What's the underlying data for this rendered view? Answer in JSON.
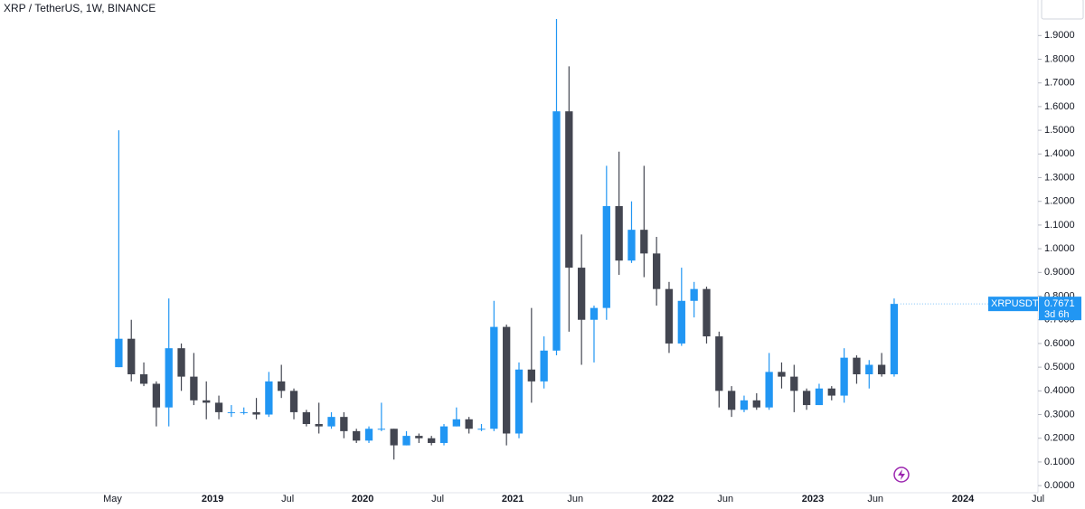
{
  "chart_data": {
    "type": "candlestick",
    "title": "XRP / TetherUS, 1W, BINANCE",
    "symbol": "XRPUSDT",
    "countdown": "3d 6h",
    "last_price": {
      "value": 0.7671,
      "label": "0.7671"
    },
    "up_color": "#2196f3",
    "down_color": "#434651",
    "x": [
      "2018-05",
      "2018-06",
      "2018-07",
      "2018-08",
      "2018-09",
      "2018-10",
      "2018-11",
      "2018-12",
      "2019-01",
      "2019-02",
      "2019-03",
      "2019-04",
      "2019-05",
      "2019-06",
      "2019-07",
      "2019-08",
      "2019-09",
      "2019-10",
      "2019-11",
      "2019-12",
      "2020-01",
      "2020-02",
      "2020-03",
      "2020-04",
      "2020-05",
      "2020-06",
      "2020-07",
      "2020-08",
      "2020-09",
      "2020-10",
      "2020-11",
      "2020-12",
      "2021-01",
      "2021-02",
      "2021-03",
      "2021-04",
      "2021-05",
      "2021-06",
      "2021-07",
      "2021-08",
      "2021-09",
      "2021-10",
      "2021-11",
      "2021-12",
      "2022-01",
      "2022-02",
      "2022-03",
      "2022-04",
      "2022-05",
      "2022-06",
      "2022-07",
      "2022-08",
      "2022-09",
      "2022-10",
      "2022-11",
      "2022-12",
      "2023-01",
      "2023-02",
      "2023-03",
      "2023-04",
      "2023-05",
      "2023-06",
      "2023-07"
    ],
    "open": [
      0.5,
      0.62,
      0.47,
      0.43,
      0.33,
      0.58,
      0.46,
      0.36,
      0.35,
      0.31,
      0.31,
      0.31,
      0.3,
      0.44,
      0.4,
      0.31,
      0.26,
      0.25,
      0.29,
      0.23,
      0.19,
      0.24,
      0.24,
      0.17,
      0.21,
      0.2,
      0.18,
      0.25,
      0.28,
      0.24,
      0.24,
      0.67,
      0.22,
      0.49,
      0.44,
      0.57,
      1.58,
      0.92,
      0.7,
      0.75,
      1.18,
      0.95,
      1.08,
      0.98,
      0.83,
      0.6,
      0.78,
      0.83,
      0.63,
      0.4,
      0.32,
      0.36,
      0.33,
      0.48,
      0.46,
      0.4,
      0.34,
      0.41,
      0.38,
      0.54,
      0.47,
      0.51,
      0.47
    ],
    "high": [
      1.5,
      0.7,
      0.52,
      0.44,
      0.79,
      0.6,
      0.56,
      0.44,
      0.38,
      0.34,
      0.33,
      0.37,
      0.48,
      0.51,
      0.41,
      0.32,
      0.35,
      0.31,
      0.31,
      0.24,
      0.25,
      0.35,
      0.24,
      0.23,
      0.22,
      0.21,
      0.26,
      0.33,
      0.29,
      0.26,
      0.78,
      0.68,
      0.52,
      0.75,
      0.63,
      1.97,
      1.77,
      1.06,
      0.76,
      1.35,
      1.41,
      1.2,
      1.35,
      1.05,
      0.86,
      0.92,
      0.86,
      0.84,
      0.65,
      0.42,
      0.38,
      0.39,
      0.56,
      0.52,
      0.51,
      0.41,
      0.43,
      0.42,
      0.58,
      0.55,
      0.53,
      0.56,
      0.79
    ],
    "low": [
      0.5,
      0.44,
      0.42,
      0.25,
      0.25,
      0.4,
      0.34,
      0.28,
      0.28,
      0.29,
      0.3,
      0.28,
      0.29,
      0.37,
      0.28,
      0.25,
      0.22,
      0.24,
      0.2,
      0.18,
      0.18,
      0.23,
      0.11,
      0.17,
      0.18,
      0.17,
      0.17,
      0.25,
      0.22,
      0.23,
      0.23,
      0.17,
      0.2,
      0.35,
      0.41,
      0.55,
      0.65,
      0.51,
      0.52,
      0.7,
      0.89,
      0.94,
      0.88,
      0.76,
      0.56,
      0.59,
      0.71,
      0.6,
      0.33,
      0.29,
      0.31,
      0.32,
      0.32,
      0.41,
      0.31,
      0.32,
      0.34,
      0.36,
      0.35,
      0.43,
      0.41,
      0.46,
      0.46
    ],
    "close": [
      0.62,
      0.47,
      0.43,
      0.33,
      0.58,
      0.46,
      0.36,
      0.35,
      0.31,
      0.31,
      0.31,
      0.3,
      0.44,
      0.4,
      0.31,
      0.26,
      0.25,
      0.29,
      0.23,
      0.19,
      0.24,
      0.24,
      0.17,
      0.21,
      0.2,
      0.18,
      0.25,
      0.28,
      0.24,
      0.24,
      0.67,
      0.22,
      0.49,
      0.44,
      0.57,
      1.58,
      0.92,
      0.7,
      0.75,
      1.18,
      0.95,
      1.08,
      0.98,
      0.83,
      0.6,
      0.78,
      0.83,
      0.63,
      0.4,
      0.32,
      0.36,
      0.33,
      0.48,
      0.46,
      0.4,
      0.34,
      0.41,
      0.38,
      0.54,
      0.47,
      0.51,
      0.47,
      0.7671
    ],
    "xlim": [
      "2017-08",
      "2024-07"
    ],
    "xticks": [
      {
        "value": "2018-05",
        "label": "May"
      },
      {
        "value": "2019-01",
        "label": "2019"
      },
      {
        "value": "2019-07",
        "label": "Jul"
      },
      {
        "value": "2020-01",
        "label": "2020"
      },
      {
        "value": "2020-07",
        "label": "Jul"
      },
      {
        "value": "2021-01",
        "label": "2021"
      },
      {
        "value": "2021-06",
        "label": "Jun"
      },
      {
        "value": "2022-01",
        "label": "2022"
      },
      {
        "value": "2022-06",
        "label": "Jun"
      },
      {
        "value": "2023-01",
        "label": "2023"
      },
      {
        "value": "2023-06",
        "label": "Jun"
      },
      {
        "value": "2024-01",
        "label": "2024"
      },
      {
        "value": "2024-07",
        "label": "Jul"
      }
    ],
    "ylim": [
      -0.03,
      2.05
    ],
    "yticks": [
      {
        "value": 0,
        "label": "0.0000"
      },
      {
        "value": 0.1,
        "label": "0.1000"
      },
      {
        "value": 0.2,
        "label": "0.2000"
      },
      {
        "value": 0.3,
        "label": "0.3000"
      },
      {
        "value": 0.4,
        "label": "0.4000"
      },
      {
        "value": 0.5,
        "label": "0.5000"
      },
      {
        "value": 0.6,
        "label": "0.6000"
      },
      {
        "value": 0.7,
        "label": "0.7000"
      },
      {
        "value": 0.8,
        "label": "0.8000"
      },
      {
        "value": 0.9,
        "label": "0.9000"
      },
      {
        "value": 1.0,
        "label": "1.0000"
      },
      {
        "value": 1.1,
        "label": "1.1000"
      },
      {
        "value": 1.2,
        "label": "1.2000"
      },
      {
        "value": 1.3,
        "label": "1.3000"
      },
      {
        "value": 1.4,
        "label": "1.4000"
      },
      {
        "value": 1.5,
        "label": "1.5000"
      },
      {
        "value": 1.6,
        "label": "1.6000"
      },
      {
        "value": 1.7,
        "label": "1.7000"
      },
      {
        "value": 1.8,
        "label": "1.8000"
      },
      {
        "value": 1.9,
        "label": "1.9000"
      }
    ],
    "grid": false
  }
}
